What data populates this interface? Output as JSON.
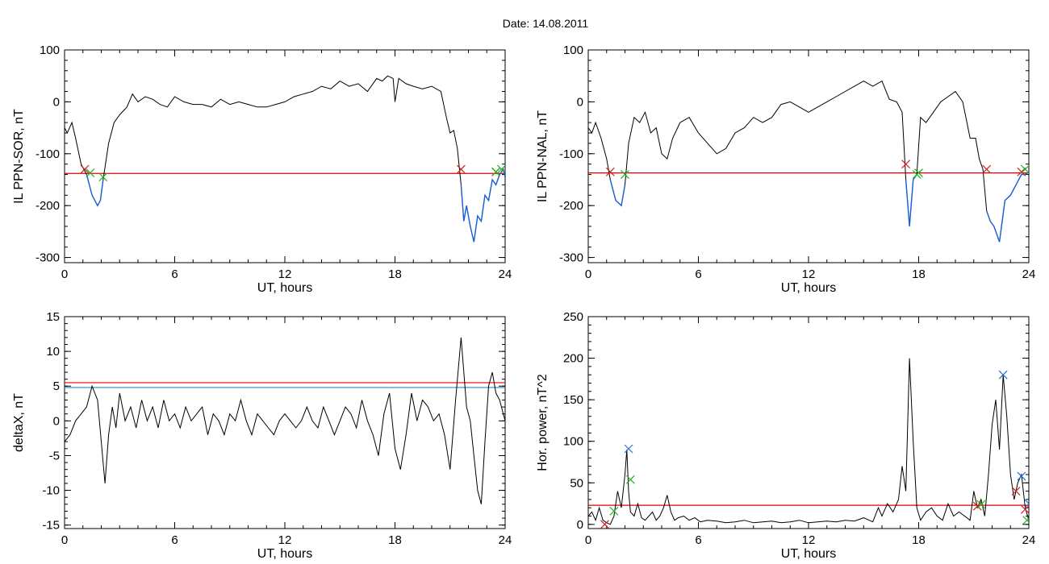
{
  "title": "Date:  14.08.2011",
  "colors": {
    "trace": "#000000",
    "threshold_red": "#e00000",
    "threshold_blue": "#2a8ab0",
    "highlight": "#1a5fd8",
    "marker_red": "#d02020",
    "marker_green": "#20b020",
    "marker_blue": "#2070d0"
  },
  "chart_data": [
    {
      "type": "line",
      "id": "sor",
      "xlabel": "UT, hours",
      "ylabel": "IL PPN-SOR, nT",
      "xlim": [
        0,
        24
      ],
      "ylim": [
        -310,
        100
      ],
      "xticks": [
        0,
        6,
        12,
        18,
        24
      ],
      "yticks": [
        -300,
        -200,
        -100,
        0,
        100
      ],
      "threshold_red": -138,
      "series": [
        {
          "x": [
            0,
            0.15,
            0.4,
            0.6,
            0.9,
            1.2,
            1.5,
            1.8,
            1.95,
            2.1,
            2.4,
            2.7,
            3.0,
            3.4,
            3.7,
            4.0,
            4.4,
            4.8,
            5.2,
            5.6,
            6.0,
            6.5,
            7.0,
            7.5,
            8.0,
            8.5,
            9.0,
            9.5,
            10.0,
            10.5,
            11.0,
            11.5,
            12.0,
            12.5,
            13.0,
            13.5,
            14.0,
            14.5,
            15.0,
            15.5,
            16.0,
            16.5,
            17.0,
            17.3,
            17.6,
            17.9,
            18.0,
            18.2,
            18.6,
            19.0,
            19.5,
            20.0,
            20.5,
            20.8,
            21.0,
            21.2,
            21.4,
            21.6,
            21.75,
            21.9,
            22.1,
            22.3,
            22.5,
            22.7,
            22.9,
            23.1,
            23.3,
            23.5,
            23.7,
            23.9,
            24.0
          ],
          "y": [
            -50,
            -60,
            -40,
            -70,
            -120,
            -140,
            -180,
            -200,
            -190,
            -150,
            -80,
            -40,
            -25,
            -10,
            15,
            0,
            10,
            5,
            -5,
            -10,
            10,
            0,
            -5,
            -5,
            -10,
            5,
            -5,
            0,
            -5,
            -10,
            -10,
            -5,
            0,
            10,
            15,
            20,
            30,
            25,
            40,
            30,
            35,
            20,
            45,
            40,
            50,
            45,
            0,
            45,
            35,
            30,
            25,
            30,
            20,
            -30,
            -60,
            -55,
            -90,
            -160,
            -230,
            -200,
            -240,
            -270,
            -220,
            -230,
            -180,
            -190,
            -150,
            -160,
            -140,
            -130,
            -145
          ]
        }
      ],
      "highlight_ranges": [
        [
          1.1,
          2.1
        ],
        [
          21.6,
          24.0
        ]
      ],
      "markers_red": [
        [
          1.1,
          -130
        ],
        [
          21.6,
          -130
        ],
        [
          23.5,
          -135
        ]
      ],
      "markers_green": [
        [
          1.4,
          -137
        ],
        [
          2.1,
          -145
        ],
        [
          23.5,
          -135
        ],
        [
          23.8,
          -130
        ]
      ]
    },
    {
      "type": "line",
      "id": "nal",
      "xlabel": "UT, hours",
      "ylabel": "IL PPN-NAL, nT",
      "xlim": [
        0,
        24
      ],
      "ylim": [
        -310,
        100
      ],
      "xticks": [
        0,
        6,
        12,
        18,
        24
      ],
      "yticks": [
        -300,
        -200,
        -100,
        0,
        100
      ],
      "threshold_red": -137,
      "series": [
        {
          "x": [
            0,
            0.2,
            0.4,
            0.7,
            1.0,
            1.2,
            1.5,
            1.8,
            2.0,
            2.2,
            2.5,
            2.8,
            3.1,
            3.4,
            3.7,
            4.0,
            4.3,
            4.6,
            5.0,
            5.5,
            6.0,
            6.5,
            7.0,
            7.5,
            8.0,
            8.5,
            9.0,
            9.5,
            10.0,
            10.5,
            11.0,
            11.5,
            12.0,
            12.5,
            13.0,
            13.5,
            14.0,
            14.5,
            15.0,
            15.5,
            16.0,
            16.4,
            16.8,
            17.1,
            17.3,
            17.5,
            17.7,
            17.9,
            18.1,
            18.4,
            18.8,
            19.2,
            19.6,
            20.0,
            20.4,
            20.8,
            21.1,
            21.3,
            21.5,
            21.7,
            21.9,
            22.1,
            22.4,
            22.7,
            23.0,
            23.3,
            23.6,
            23.8,
            24.0
          ],
          "y": [
            -50,
            -60,
            -40,
            -70,
            -110,
            -150,
            -190,
            -200,
            -160,
            -80,
            -30,
            -40,
            -20,
            -60,
            -50,
            -100,
            -110,
            -70,
            -40,
            -30,
            -60,
            -80,
            -100,
            -90,
            -60,
            -50,
            -30,
            -40,
            -30,
            -5,
            0,
            -10,
            -20,
            -10,
            0,
            10,
            20,
            30,
            40,
            30,
            40,
            5,
            0,
            -20,
            -150,
            -240,
            -150,
            -140,
            -30,
            -40,
            -20,
            0,
            10,
            20,
            0,
            -70,
            -70,
            -110,
            -130,
            -210,
            -230,
            -240,
            -270,
            -190,
            -180,
            -160,
            -140,
            -140,
            -135
          ]
        }
      ],
      "highlight_ranges": [
        [
          1.2,
          2.0
        ],
        [
          17.3,
          18.0
        ],
        [
          21.7,
          24.0
        ]
      ],
      "markers_red": [
        [
          1.2,
          -135
        ],
        [
          17.3,
          -120
        ],
        [
          21.7,
          -130
        ],
        [
          23.6,
          -135
        ]
      ],
      "markers_green": [
        [
          2.0,
          -140
        ],
        [
          17.9,
          -140
        ],
        [
          18.0,
          -137
        ],
        [
          23.8,
          -130
        ]
      ]
    },
    {
      "type": "line",
      "id": "deltax",
      "xlabel": "UT, hours",
      "ylabel": "deltaX, nT",
      "xlim": [
        0,
        24
      ],
      "ylim": [
        -15.5,
        15
      ],
      "xticks": [
        0,
        6,
        12,
        18,
        24
      ],
      "yticks": [
        -15,
        -10,
        -5,
        0,
        5,
        10,
        15
      ],
      "threshold_red": 5.5,
      "threshold_blue": 4.8,
      "series": [
        {
          "x": [
            0,
            0.3,
            0.6,
            0.9,
            1.2,
            1.5,
            1.8,
            2.0,
            2.2,
            2.4,
            2.6,
            2.8,
            3.0,
            3.3,
            3.6,
            3.9,
            4.2,
            4.5,
            4.8,
            5.1,
            5.4,
            5.7,
            6.0,
            6.3,
            6.6,
            6.9,
            7.2,
            7.5,
            7.8,
            8.1,
            8.4,
            8.7,
            9.0,
            9.3,
            9.6,
            9.9,
            10.2,
            10.5,
            10.8,
            11.1,
            11.4,
            11.7,
            12.0,
            12.3,
            12.6,
            12.9,
            13.2,
            13.5,
            13.8,
            14.1,
            14.4,
            14.7,
            15.0,
            15.3,
            15.6,
            15.9,
            16.2,
            16.5,
            16.8,
            17.1,
            17.4,
            17.7,
            18.0,
            18.3,
            18.6,
            18.9,
            19.2,
            19.5,
            19.8,
            20.1,
            20.4,
            20.7,
            21.0,
            21.3,
            21.6,
            21.9,
            22.1,
            22.3,
            22.5,
            22.7,
            22.9,
            23.1,
            23.3,
            23.5,
            23.7,
            23.9,
            24.0
          ],
          "y": [
            -3,
            -2,
            0,
            1,
            2,
            5,
            3,
            -3,
            -9,
            -2,
            2,
            -1,
            4,
            0,
            2,
            -1,
            3,
            0,
            2,
            -1,
            3,
            0,
            1,
            -1,
            2,
            0,
            1,
            2,
            -2,
            1,
            0,
            -2,
            1,
            0,
            3,
            0,
            -2,
            1,
            0,
            -1,
            -2,
            0,
            1,
            0,
            -1,
            0,
            2,
            0,
            -1,
            2,
            0,
            -2,
            0,
            2,
            1,
            -1,
            3,
            0,
            -2,
            -5,
            1,
            4,
            -4,
            -7,
            -2,
            4,
            0,
            3,
            2,
            0,
            1,
            -2,
            -7,
            3,
            12,
            2,
            0,
            -5,
            -10,
            -12,
            -3,
            5,
            7,
            4,
            3,
            1,
            0
          ]
        }
      ]
    },
    {
      "type": "line",
      "id": "power",
      "xlabel": "UT, hours",
      "ylabel": "Hor. power, nT^2",
      "xlim": [
        0,
        24
      ],
      "ylim": [
        -5,
        250
      ],
      "xticks": [
        0,
        6,
        12,
        18,
        24
      ],
      "yticks": [
        0,
        50,
        100,
        150,
        200,
        250
      ],
      "threshold_red": 23,
      "series": [
        {
          "x": [
            0,
            0.2,
            0.4,
            0.6,
            0.8,
            1.0,
            1.2,
            1.4,
            1.6,
            1.8,
            2.0,
            2.1,
            2.2,
            2.3,
            2.5,
            2.7,
            2.9,
            3.1,
            3.3,
            3.5,
            3.7,
            3.9,
            4.1,
            4.3,
            4.5,
            4.7,
            4.9,
            5.2,
            5.5,
            5.8,
            6.1,
            6.5,
            7.0,
            7.5,
            8.0,
            8.5,
            9.0,
            9.5,
            10.0,
            10.5,
            11.0,
            11.5,
            12.0,
            12.5,
            13.0,
            13.5,
            14.0,
            14.5,
            15.0,
            15.5,
            15.8,
            16.0,
            16.3,
            16.6,
            16.9,
            17.1,
            17.3,
            17.5,
            17.7,
            17.9,
            18.1,
            18.4,
            18.7,
            19.0,
            19.3,
            19.6,
            19.9,
            20.2,
            20.5,
            20.8,
            21.0,
            21.2,
            21.4,
            21.6,
            21.8,
            22.0,
            22.2,
            22.4,
            22.6,
            22.8,
            23.0,
            23.2,
            23.4,
            23.6,
            23.8,
            24.0
          ],
          "y": [
            10,
            15,
            5,
            20,
            5,
            2,
            0,
            10,
            40,
            20,
            60,
            90,
            40,
            15,
            10,
            25,
            8,
            5,
            10,
            15,
            5,
            10,
            20,
            35,
            15,
            5,
            8,
            10,
            5,
            8,
            3,
            5,
            4,
            2,
            3,
            5,
            2,
            3,
            4,
            2,
            3,
            5,
            2,
            3,
            4,
            3,
            5,
            4,
            8,
            3,
            20,
            10,
            25,
            15,
            30,
            70,
            40,
            200,
            100,
            20,
            5,
            15,
            20,
            10,
            5,
            25,
            10,
            15,
            10,
            5,
            40,
            20,
            30,
            10,
            60,
            120,
            150,
            90,
            180,
            130,
            60,
            30,
            50,
            60,
            20,
            5
          ]
        }
      ],
      "markers_red": [
        [
          0.9,
          0
        ],
        [
          21.2,
          22
        ],
        [
          23.3,
          40
        ],
        [
          23.8,
          18
        ]
      ],
      "markers_green": [
        [
          1.4,
          16
        ],
        [
          2.3,
          54
        ],
        [
          21.4,
          24
        ],
        [
          23.9,
          5
        ]
      ],
      "markers_blue": [
        [
          2.2,
          91
        ],
        [
          22.6,
          180
        ],
        [
          23.6,
          58
        ],
        [
          24.0,
          25
        ]
      ]
    }
  ]
}
